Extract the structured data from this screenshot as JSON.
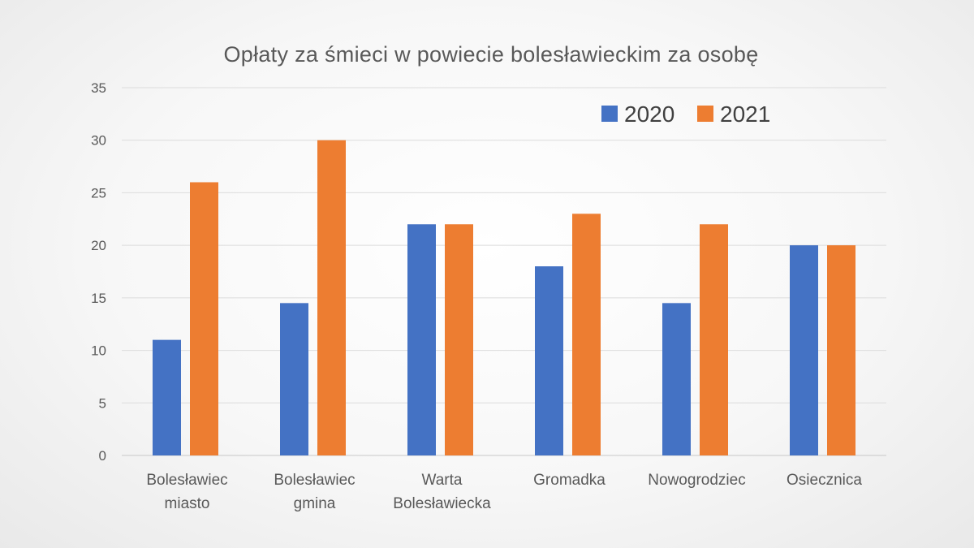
{
  "chart_data": {
    "type": "bar",
    "title": "Opłaty za śmieci w powiecie bolesławieckim  za osobę",
    "categories": [
      [
        "Bolesławiec",
        "miasto"
      ],
      [
        "Bolesławiec",
        "gmina"
      ],
      [
        "Warta",
        "Bolesławiecka"
      ],
      [
        "Gromadka"
      ],
      [
        "Nowogrodziec"
      ],
      [
        "Osiecznica"
      ]
    ],
    "series": [
      {
        "name": "2020",
        "color": "#4472C4",
        "values": [
          11,
          14.5,
          22,
          18,
          14.5,
          20
        ]
      },
      {
        "name": "2021",
        "color": "#ED7D31",
        "values": [
          26,
          30,
          22,
          23,
          22,
          20
        ]
      }
    ],
    "ylim": [
      0,
      35
    ],
    "yticks": [
      "0",
      "5",
      "10",
      "15",
      "20",
      "25",
      "30",
      "35"
    ],
    "grid": true,
    "legend_position": "top-right",
    "xlabel": "",
    "ylabel": ""
  }
}
